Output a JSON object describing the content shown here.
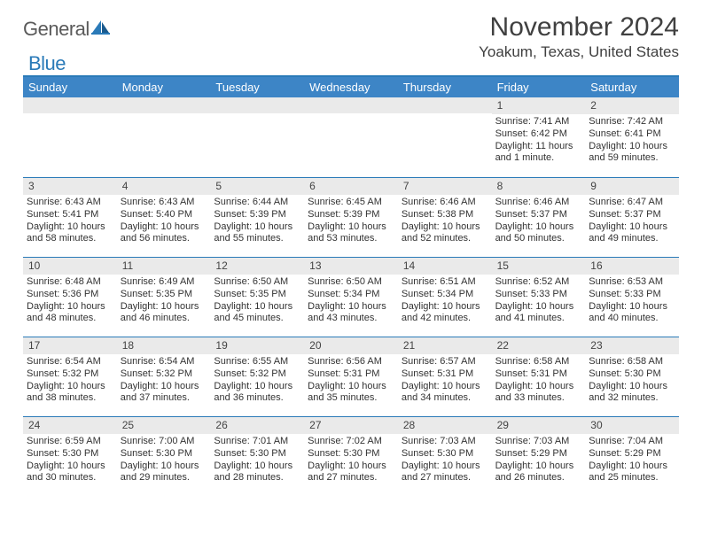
{
  "logo": {
    "word1": "General",
    "word2": "Blue"
  },
  "title": "November 2024",
  "location": "Yoakum, Texas, United States",
  "weekdays": [
    "Sunday",
    "Monday",
    "Tuesday",
    "Wednesday",
    "Thursday",
    "Friday",
    "Saturday"
  ],
  "colors": {
    "header_bar": "#3d85c6",
    "accent": "#2a7ab8",
    "daynum_bg": "#eaeaea",
    "text": "#333333"
  },
  "weeks": [
    [
      {
        "num": "",
        "lines": []
      },
      {
        "num": "",
        "lines": []
      },
      {
        "num": "",
        "lines": []
      },
      {
        "num": "",
        "lines": []
      },
      {
        "num": "",
        "lines": []
      },
      {
        "num": "1",
        "lines": [
          "Sunrise: 7:41 AM",
          "Sunset: 6:42 PM",
          "Daylight: 11 hours and 1 minute."
        ]
      },
      {
        "num": "2",
        "lines": [
          "Sunrise: 7:42 AM",
          "Sunset: 6:41 PM",
          "Daylight: 10 hours and 59 minutes."
        ]
      }
    ],
    [
      {
        "num": "3",
        "lines": [
          "Sunrise: 6:43 AM",
          "Sunset: 5:41 PM",
          "Daylight: 10 hours and 58 minutes."
        ]
      },
      {
        "num": "4",
        "lines": [
          "Sunrise: 6:43 AM",
          "Sunset: 5:40 PM",
          "Daylight: 10 hours and 56 minutes."
        ]
      },
      {
        "num": "5",
        "lines": [
          "Sunrise: 6:44 AM",
          "Sunset: 5:39 PM",
          "Daylight: 10 hours and 55 minutes."
        ]
      },
      {
        "num": "6",
        "lines": [
          "Sunrise: 6:45 AM",
          "Sunset: 5:39 PM",
          "Daylight: 10 hours and 53 minutes."
        ]
      },
      {
        "num": "7",
        "lines": [
          "Sunrise: 6:46 AM",
          "Sunset: 5:38 PM",
          "Daylight: 10 hours and 52 minutes."
        ]
      },
      {
        "num": "8",
        "lines": [
          "Sunrise: 6:46 AM",
          "Sunset: 5:37 PM",
          "Daylight: 10 hours and 50 minutes."
        ]
      },
      {
        "num": "9",
        "lines": [
          "Sunrise: 6:47 AM",
          "Sunset: 5:37 PM",
          "Daylight: 10 hours and 49 minutes."
        ]
      }
    ],
    [
      {
        "num": "10",
        "lines": [
          "Sunrise: 6:48 AM",
          "Sunset: 5:36 PM",
          "Daylight: 10 hours and 48 minutes."
        ]
      },
      {
        "num": "11",
        "lines": [
          "Sunrise: 6:49 AM",
          "Sunset: 5:35 PM",
          "Daylight: 10 hours and 46 minutes."
        ]
      },
      {
        "num": "12",
        "lines": [
          "Sunrise: 6:50 AM",
          "Sunset: 5:35 PM",
          "Daylight: 10 hours and 45 minutes."
        ]
      },
      {
        "num": "13",
        "lines": [
          "Sunrise: 6:50 AM",
          "Sunset: 5:34 PM",
          "Daylight: 10 hours and 43 minutes."
        ]
      },
      {
        "num": "14",
        "lines": [
          "Sunrise: 6:51 AM",
          "Sunset: 5:34 PM",
          "Daylight: 10 hours and 42 minutes."
        ]
      },
      {
        "num": "15",
        "lines": [
          "Sunrise: 6:52 AM",
          "Sunset: 5:33 PM",
          "Daylight: 10 hours and 41 minutes."
        ]
      },
      {
        "num": "16",
        "lines": [
          "Sunrise: 6:53 AM",
          "Sunset: 5:33 PM",
          "Daylight: 10 hours and 40 minutes."
        ]
      }
    ],
    [
      {
        "num": "17",
        "lines": [
          "Sunrise: 6:54 AM",
          "Sunset: 5:32 PM",
          "Daylight: 10 hours and 38 minutes."
        ]
      },
      {
        "num": "18",
        "lines": [
          "Sunrise: 6:54 AM",
          "Sunset: 5:32 PM",
          "Daylight: 10 hours and 37 minutes."
        ]
      },
      {
        "num": "19",
        "lines": [
          "Sunrise: 6:55 AM",
          "Sunset: 5:32 PM",
          "Daylight: 10 hours and 36 minutes."
        ]
      },
      {
        "num": "20",
        "lines": [
          "Sunrise: 6:56 AM",
          "Sunset: 5:31 PM",
          "Daylight: 10 hours and 35 minutes."
        ]
      },
      {
        "num": "21",
        "lines": [
          "Sunrise: 6:57 AM",
          "Sunset: 5:31 PM",
          "Daylight: 10 hours and 34 minutes."
        ]
      },
      {
        "num": "22",
        "lines": [
          "Sunrise: 6:58 AM",
          "Sunset: 5:31 PM",
          "Daylight: 10 hours and 33 minutes."
        ]
      },
      {
        "num": "23",
        "lines": [
          "Sunrise: 6:58 AM",
          "Sunset: 5:30 PM",
          "Daylight: 10 hours and 32 minutes."
        ]
      }
    ],
    [
      {
        "num": "24",
        "lines": [
          "Sunrise: 6:59 AM",
          "Sunset: 5:30 PM",
          "Daylight: 10 hours and 30 minutes."
        ]
      },
      {
        "num": "25",
        "lines": [
          "Sunrise: 7:00 AM",
          "Sunset: 5:30 PM",
          "Daylight: 10 hours and 29 minutes."
        ]
      },
      {
        "num": "26",
        "lines": [
          "Sunrise: 7:01 AM",
          "Sunset: 5:30 PM",
          "Daylight: 10 hours and 28 minutes."
        ]
      },
      {
        "num": "27",
        "lines": [
          "Sunrise: 7:02 AM",
          "Sunset: 5:30 PM",
          "Daylight: 10 hours and 27 minutes."
        ]
      },
      {
        "num": "28",
        "lines": [
          "Sunrise: 7:03 AM",
          "Sunset: 5:30 PM",
          "Daylight: 10 hours and 27 minutes."
        ]
      },
      {
        "num": "29",
        "lines": [
          "Sunrise: 7:03 AM",
          "Sunset: 5:29 PM",
          "Daylight: 10 hours and 26 minutes."
        ]
      },
      {
        "num": "30",
        "lines": [
          "Sunrise: 7:04 AM",
          "Sunset: 5:29 PM",
          "Daylight: 10 hours and 25 minutes."
        ]
      }
    ]
  ]
}
